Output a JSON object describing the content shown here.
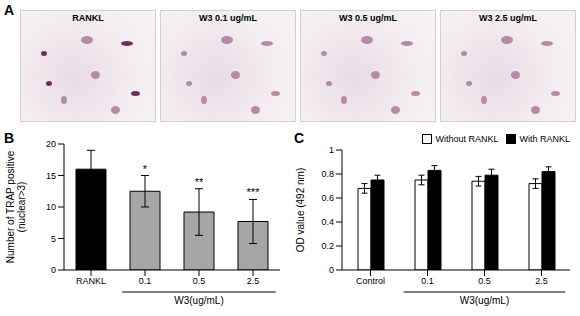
{
  "figure": {
    "panel_a": {
      "label": "A",
      "captions": [
        "RANKL",
        "W3 0.1 ug/mL",
        "W3 0.5 ug/mL",
        "W3 2.5 ug/mL"
      ]
    }
  },
  "chart_data": [
    {
      "type": "bar",
      "title": "B",
      "categories": [
        "RANKL",
        "0.1",
        "0.5",
        "2.5"
      ],
      "values": [
        16,
        12.5,
        9.2,
        7.7
      ],
      "errors": [
        3,
        2.5,
        3.7,
        3.5
      ],
      "colors": [
        "#000000",
        "#a6a6a6",
        "#a6a6a6",
        "#a6a6a6"
      ],
      "xlabel": "W3(ug/mL)",
      "ylabel": [
        "Number of TRAP positive",
        "(nuclear>3)"
      ],
      "ylim": [
        0,
        20
      ],
      "yticks": [
        0,
        5,
        10,
        15,
        20
      ],
      "annotations": [
        {
          "category": "0.1",
          "text": "*"
        },
        {
          "category": "0.5",
          "text": "**"
        },
        {
          "category": "2.5",
          "text": "***"
        }
      ]
    },
    {
      "type": "bar",
      "title": "C",
      "categories": [
        "Control",
        "0.1",
        "0.5",
        "2.5"
      ],
      "series": [
        {
          "name": "Without RANKL",
          "color": "#ffffff",
          "values": [
            0.68,
            0.75,
            0.74,
            0.72
          ],
          "errors": [
            0.04,
            0.04,
            0.04,
            0.04
          ]
        },
        {
          "name": "With RANKL",
          "color": "#000000",
          "values": [
            0.75,
            0.83,
            0.79,
            0.82
          ],
          "errors": [
            0.04,
            0.04,
            0.05,
            0.04
          ]
        }
      ],
      "xlabel": "W3(ug/mL)",
      "ylabel": "OD value (492 nm)",
      "ylim": [
        0,
        1
      ],
      "yticks": [
        0,
        0.2,
        0.4,
        0.6,
        0.8,
        1
      ],
      "legend": "top right"
    }
  ]
}
